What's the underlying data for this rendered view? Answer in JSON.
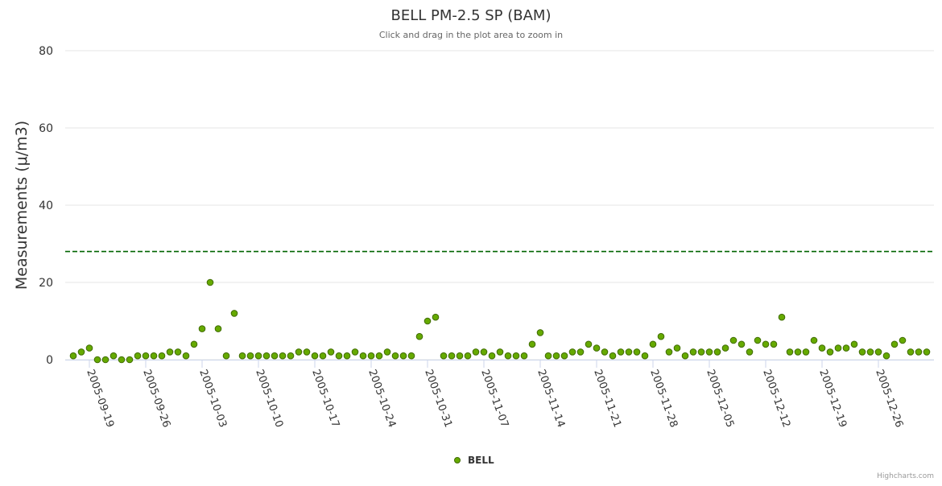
{
  "chart_data": {
    "type": "scatter",
    "title": "BELL PM-2.5 SP (BAM)",
    "subtitle": "Click and drag in the plot area to zoom in",
    "ylabel": "Measurements (μ/m3)",
    "xlabel": "",
    "ylim": [
      0,
      80
    ],
    "yticks": [
      0,
      20,
      40,
      60,
      80
    ],
    "xlim": [
      "2005-09-16",
      "2006-01-01"
    ],
    "xticks": [
      "2005-09-19",
      "2005-09-26",
      "2005-10-03",
      "2005-10-10",
      "2005-10-17",
      "2005-10-24",
      "2005-10-31",
      "2005-11-07",
      "2005-11-14",
      "2005-11-21",
      "2005-11-28",
      "2005-12-05",
      "2005-12-12",
      "2005-12-19",
      "2005-12-26"
    ],
    "grid": true,
    "legend": "bottom-center",
    "reference_line": {
      "value": 28,
      "color": "#006400",
      "style": "dashed"
    },
    "series": [
      {
        "name": "BELL",
        "color": "#66aa00",
        "start_date": "2005-09-17",
        "values": [
          1,
          2,
          3,
          0,
          0,
          1,
          0,
          0,
          1,
          1,
          1,
          1,
          2,
          2,
          1,
          4,
          8,
          20,
          8,
          1,
          12,
          1,
          1,
          1,
          1,
          1,
          1,
          1,
          2,
          2,
          1,
          1,
          2,
          1,
          1,
          2,
          1,
          1,
          1,
          2,
          1,
          1,
          1,
          6,
          10,
          11,
          1,
          1,
          1,
          1,
          2,
          2,
          1,
          2,
          1,
          1,
          1,
          4,
          7,
          1,
          1,
          1,
          2,
          2,
          4,
          3,
          2,
          1,
          2,
          2,
          2,
          1,
          4,
          6,
          2,
          3,
          1,
          2,
          2,
          2,
          2,
          3,
          5,
          4,
          2,
          5,
          4,
          4,
          11,
          2,
          2,
          2,
          5,
          3,
          2,
          3,
          3,
          4,
          2,
          2,
          2,
          1,
          4,
          5,
          2,
          2,
          2
        ]
      }
    ]
  },
  "credits": "Highcharts.com"
}
